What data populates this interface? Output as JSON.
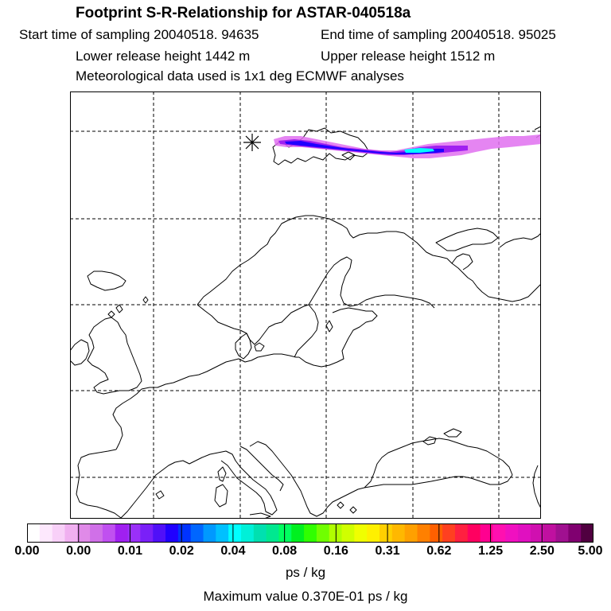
{
  "title": "Footprint S-R-Relationship for ASTAR-040518a",
  "header": {
    "start_time": "Start time of sampling 20040518. 94635",
    "end_time": "End time of sampling 20040518. 95025",
    "lower_height": "Lower release height 1442 m",
    "upper_height": "Upper release height 1512 m",
    "met_data": "Meteorological data used is 1x1 deg ECMWF analyses"
  },
  "colorbar": {
    "ticks": [
      "0.00",
      "0.00",
      "0.01",
      "0.02",
      "0.04",
      "0.08",
      "0.16",
      "0.31",
      "0.62",
      "1.25",
      "2.50",
      "5.00"
    ],
    "colors": [
      "#ffffff",
      "#fde8fd",
      "#f8d0f8",
      "#f0b0f0",
      "#e08ae8",
      "#d070e8",
      "#c050f0",
      "#a020f0",
      "#9a30f8",
      "#7a20f8",
      "#5010f8",
      "#2000ff",
      "#0033ff",
      "#0066ff",
      "#0099ff",
      "#00c0ff",
      "#00ffff",
      "#00f0d8",
      "#00e0b0",
      "#00e890",
      "#00ff60",
      "#00f020",
      "#30ff00",
      "#70ff00",
      "#b0ff00",
      "#d0ff00",
      "#f0ff00",
      "#fff000",
      "#ffd000",
      "#ffb800",
      "#ffa000",
      "#ff8000",
      "#ff6000",
      "#ff4020",
      "#ff2040",
      "#ff0060",
      "#ff0090",
      "#ff10b0",
      "#f010c0",
      "#e010c0",
      "#d010b0",
      "#c010a0",
      "#a01090",
      "#800070",
      "#500040"
    ],
    "units": "ps / kg",
    "max_value": "Maximum value  0.370E-01 ps / kg"
  }
}
